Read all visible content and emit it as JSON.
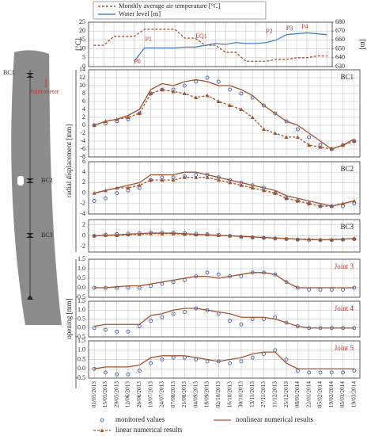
{
  "diagram": {
    "labels": [
      "BC1",
      "Joint-meter",
      "BC2",
      "BC3"
    ]
  },
  "chart_data": [
    {
      "type": "line",
      "ylabel": "[°C]",
      "y2label": "[m]",
      "ylim": [
        0,
        25
      ],
      "yticks": [
        0,
        5,
        10,
        15,
        20,
        25
      ],
      "y2lim": [
        630,
        680
      ],
      "y2ticks": [
        630,
        640,
        650,
        660,
        670,
        680
      ],
      "grid": true,
      "annotations": [
        "P0",
        "P1",
        "EQ1",
        "P2",
        "P3",
        "P4"
      ],
      "series": [
        {
          "name": "Monthly average air temperature [°C]",
          "color": "#a0522d",
          "dash": true,
          "line": true,
          "values": [
            12,
            12,
            17,
            17,
            17,
            21,
            21,
            21,
            21,
            16,
            16,
            12,
            12,
            8,
            8,
            3,
            3,
            3,
            4,
            4,
            5,
            5,
            6,
            6
          ]
        },
        {
          "name": "Water level [m]",
          "color": "#4a7fc1",
          "axis": "y2",
          "line": true,
          "values": [
            null,
            null,
            null,
            null,
            636,
            651,
            651,
            651,
            651,
            652,
            652,
            654,
            656,
            655,
            657,
            656,
            656,
            657,
            660,
            666,
            667,
            668,
            667,
            666
          ]
        }
      ]
    },
    {
      "type": "line",
      "title": "BC1",
      "ylabel": "radial displacement [mm]",
      "ylim": [
        -8,
        14
      ],
      "yticks": [
        -8,
        -6,
        -4,
        -2,
        0,
        2,
        4,
        6,
        8,
        10,
        12,
        14
      ],
      "grid": true,
      "series": [
        {
          "name": "monitored values",
          "color": "#2e4a9e",
          "marker": "circle",
          "values": [
            0,
            0.5,
            1,
            1.5,
            3,
            8,
            9,
            9,
            10,
            11,
            12,
            11,
            9,
            8,
            7,
            5,
            3,
            1,
            -1,
            -3,
            -5,
            -6,
            -5,
            -4
          ]
        },
        {
          "name": "nonlinear numerical results",
          "color": "#a0522d",
          "line": true,
          "values": [
            0,
            1,
            1.5,
            2.5,
            4,
            9,
            10.5,
            10,
            11,
            11.5,
            11,
            10,
            10,
            9,
            7.5,
            5,
            3,
            1,
            0,
            -2,
            -4,
            -6,
            -5,
            -3.5
          ]
        },
        {
          "name": "linear numerical results",
          "color": "#a0522d",
          "line": true,
          "dash": true,
          "marker": "triangle",
          "values": [
            0,
            1,
            1.5,
            2,
            3,
            8,
            9,
            8.5,
            8,
            7,
            7.5,
            6,
            5,
            4,
            2,
            -1,
            -2,
            -3,
            -3,
            -5,
            -5.5,
            -6,
            -5,
            -4
          ]
        }
      ]
    },
    {
      "type": "line",
      "title": "BC2",
      "ylim": [
        -4,
        6
      ],
      "yticks": [
        -4,
        -2,
        0,
        2,
        4,
        6
      ],
      "grid": true,
      "series": [
        {
          "color": "#2e4a9e",
          "marker": "circle",
          "values": [
            -1.5,
            -1,
            0,
            0.5,
            1,
            2.5,
            3,
            3,
            3.2,
            3.5,
            3.5,
            3,
            2.5,
            2,
            1.5,
            1,
            0,
            -1,
            -1.5,
            -2,
            -2.5,
            -2.5,
            -2.5,
            -2
          ]
        },
        {
          "color": "#a0522d",
          "line": true,
          "values": [
            0,
            0.5,
            1,
            1.5,
            2,
            3.5,
            3.5,
            3.5,
            4,
            4,
            3.5,
            3,
            2.5,
            2,
            1.5,
            1,
            0.5,
            -0.5,
            -1,
            -1.5,
            -2,
            -2.5,
            -2,
            -1.5
          ]
        },
        {
          "color": "#a0522d",
          "line": true,
          "dash": true,
          "marker": "triangle",
          "values": [
            0,
            0.5,
            1,
            1,
            1.5,
            2.5,
            2.5,
            2.5,
            3,
            3,
            3,
            2.5,
            2,
            1.5,
            1,
            0.5,
            0,
            -1,
            -1.5,
            -2,
            -2.5,
            -2.5,
            -2,
            -1.5
          ]
        }
      ]
    },
    {
      "type": "line",
      "title": "BC3",
      "ylim": [
        -3,
        3
      ],
      "yticks": [
        -2,
        0,
        2
      ],
      "grid": true,
      "series": [
        {
          "color": "#2e4a9e",
          "marker": "circle",
          "values": [
            0,
            0.2,
            0.3,
            0.4,
            0.5,
            0.6,
            0.6,
            0.6,
            0.5,
            0.4,
            0.3,
            0.2,
            0,
            -0.2,
            -0.3,
            -0.4,
            -0.5,
            -0.6,
            -0.7,
            -0.8,
            -0.8,
            -0.8,
            -0.7,
            -0.6
          ]
        },
        {
          "color": "#a0522d",
          "line": true,
          "values": [
            0,
            0.1,
            0.2,
            0.3,
            0.4,
            0.5,
            0.5,
            0.5,
            0.4,
            0.3,
            0.2,
            0.1,
            0,
            -0.1,
            -0.2,
            -0.3,
            -0.4,
            -0.5,
            -0.6,
            -0.7,
            -0.7,
            -0.7,
            -0.6,
            -0.5
          ]
        },
        {
          "color": "#a0522d",
          "line": true,
          "dash": true,
          "marker": "triangle",
          "values": [
            0,
            0.1,
            0.1,
            0.2,
            0.3,
            0.4,
            0.4,
            0.4,
            0.3,
            0.2,
            0.2,
            0.1,
            0,
            -0.1,
            -0.2,
            -0.3,
            -0.4,
            -0.5,
            -0.6,
            -0.6,
            -0.7,
            -0.7,
            -0.6,
            -0.5
          ]
        }
      ]
    },
    {
      "type": "line",
      "title": "Joint 3",
      "title_color": "#b03a2e",
      "ylabel": "opening [mm]",
      "ylim": [
        -0.5,
        1.5
      ],
      "yticks": [
        -0.5,
        {
          "value": 0,
          "label": "0.0"
        },
        0.5,
        {
          "value": 1,
          "label": "1.0"
        },
        1.5
      ],
      "grid": true,
      "series": [
        {
          "color": "#2e4a9e",
          "marker": "circle",
          "values": [
            0,
            0,
            0,
            0,
            0,
            0.1,
            0.2,
            0.3,
            0.4,
            0.6,
            0.8,
            0.7,
            0.6,
            0.6,
            0.8,
            0.8,
            0.7,
            0.3,
            0,
            -0.1,
            -0.1,
            -0.1,
            -0.1,
            0
          ]
        },
        {
          "color": "#a0522d",
          "line": true,
          "values": [
            0,
            0,
            0.05,
            0.1,
            0.1,
            0.2,
            0.3,
            0.4,
            0.5,
            0.6,
            0.6,
            0.5,
            0.6,
            0.7,
            0.8,
            0.8,
            0.7,
            0.3,
            0,
            0,
            0,
            0,
            0,
            0
          ]
        }
      ]
    },
    {
      "type": "line",
      "title": "Joint 4",
      "title_color": "#b03a2e",
      "ylim": [
        -0.5,
        1.5
      ],
      "yticks": [
        -0.5,
        {
          "value": 0,
          "label": "0.0"
        },
        0.5,
        {
          "value": 1,
          "label": "1.0"
        },
        1.5
      ],
      "grid": true,
      "series": [
        {
          "color": "#2e4a9e",
          "marker": "circle",
          "values": [
            0,
            -0.1,
            -0.2,
            -0.2,
            0.1,
            0.4,
            0.6,
            0.8,
            0.9,
            1.1,
            1.0,
            0.8,
            0.4,
            0.2,
            0.5,
            0.5,
            0.6,
            0.3,
            0.1,
            0,
            0,
            0,
            0,
            0
          ]
        },
        {
          "color": "#a0522d",
          "line": true,
          "values": [
            0.1,
            0.2,
            0.2,
            0.2,
            0.2,
            0.7,
            0.8,
            1.0,
            1.1,
            1.1,
            1.0,
            0.9,
            0.8,
            0.6,
            0.6,
            0.6,
            0.5,
            0.3,
            0.1,
            0,
            0,
            0,
            0,
            0
          ]
        }
      ]
    },
    {
      "type": "line",
      "title": "Joint 5",
      "title_color": "#b03a2e",
      "ylim": [
        -0.5,
        1.5
      ],
      "yticks": [
        -0.5,
        {
          "value": 0,
          "label": "0.0"
        },
        0.5,
        {
          "value": 1,
          "label": "1.0"
        },
        1.5
      ],
      "grid": true,
      "categories": [
        "01/05/2013",
        "15/05/2013",
        "29/05/2013",
        "12/06/2013",
        "26/06/2013",
        "10/07/2013",
        "24/07/2013",
        "07/08/2013",
        "21/08/2013",
        "04/09/2013",
        "18/09/2013",
        "02/10/2013",
        "16/10/2013",
        "30/10/2013",
        "13/11/2013",
        "27/11/2013",
        "11/12/2013",
        "25/12/2013",
        "08/01/2014",
        "22/01/2014",
        "05/02/2014",
        "19/02/2014",
        "05/03/2014",
        "19/03/2014"
      ],
      "series": [
        {
          "color": "#2e4a9e",
          "marker": "circle",
          "values": [
            0,
            -0.2,
            -0.3,
            -0.3,
            -0.1,
            0.3,
            0.5,
            0.6,
            0.6,
            0.5,
            0.4,
            0.4,
            0.3,
            0.4,
            0.6,
            0.8,
            1.0,
            0.5,
            -0.1,
            -0.2,
            -0.2,
            -0.2,
            -0.2,
            -0.1
          ]
        },
        {
          "color": "#a0522d",
          "line": true,
          "values": [
            0,
            0.1,
            0.1,
            0.1,
            0.2,
            0.6,
            0.7,
            0.7,
            0.7,
            0.6,
            0.5,
            0.4,
            0.5,
            0.6,
            0.8,
            0.9,
            0.9,
            0.3,
            0,
            0,
            0,
            0,
            0,
            0
          ]
        }
      ]
    }
  ]
}
